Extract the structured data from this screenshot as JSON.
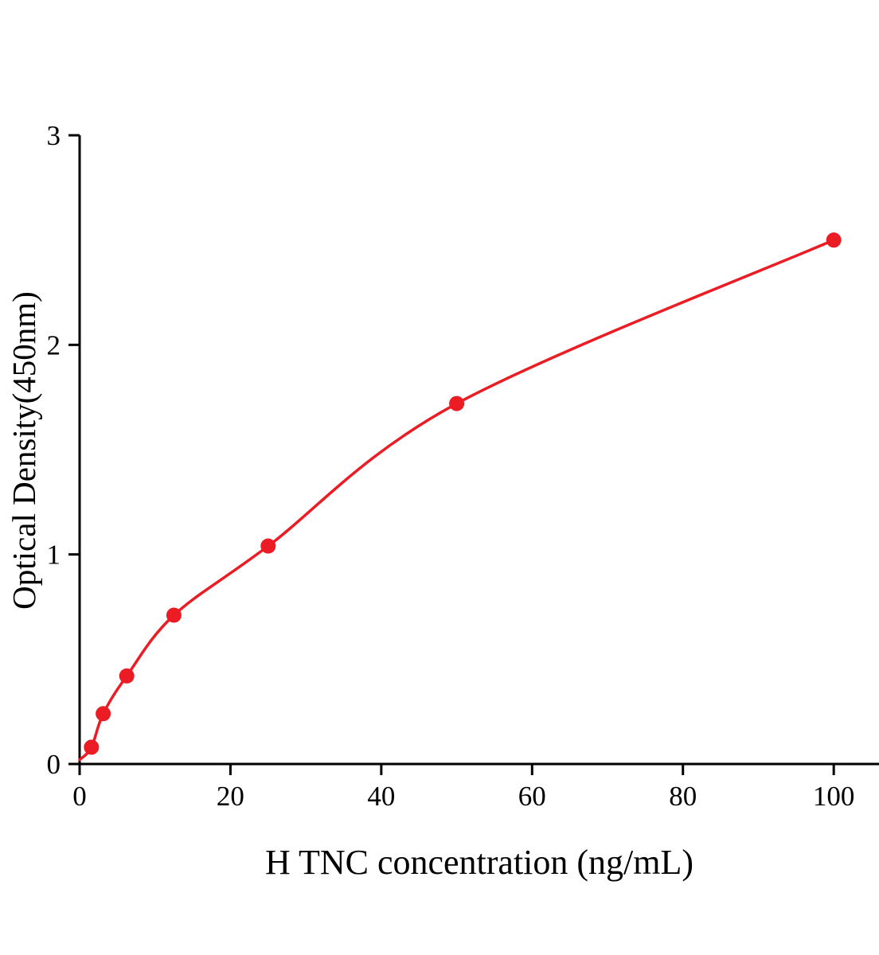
{
  "chart_data": {
    "type": "scatter",
    "title": "",
    "xlabel": "H TNC concentration (ng/mL)",
    "ylabel": "Optical Density(450nm)",
    "x": [
      1.563,
      3.125,
      6.25,
      12.5,
      25,
      50,
      100
    ],
    "y": [
      0.08,
      0.24,
      0.42,
      0.71,
      1.04,
      1.72,
      2.5
    ],
    "fit_line": true,
    "fit_line_start": [
      0,
      0.02
    ],
    "xlim": [
      0,
      106
    ],
    "ylim": [
      0,
      3
    ],
    "xticks": [
      0,
      20,
      40,
      60,
      80,
      100
    ],
    "yticks": [
      0,
      1,
      2,
      3
    ],
    "grid": false,
    "legend": null,
    "marker_color": "#ec1c24",
    "line_color": "#ec1c24",
    "axis_color": "#000000"
  }
}
